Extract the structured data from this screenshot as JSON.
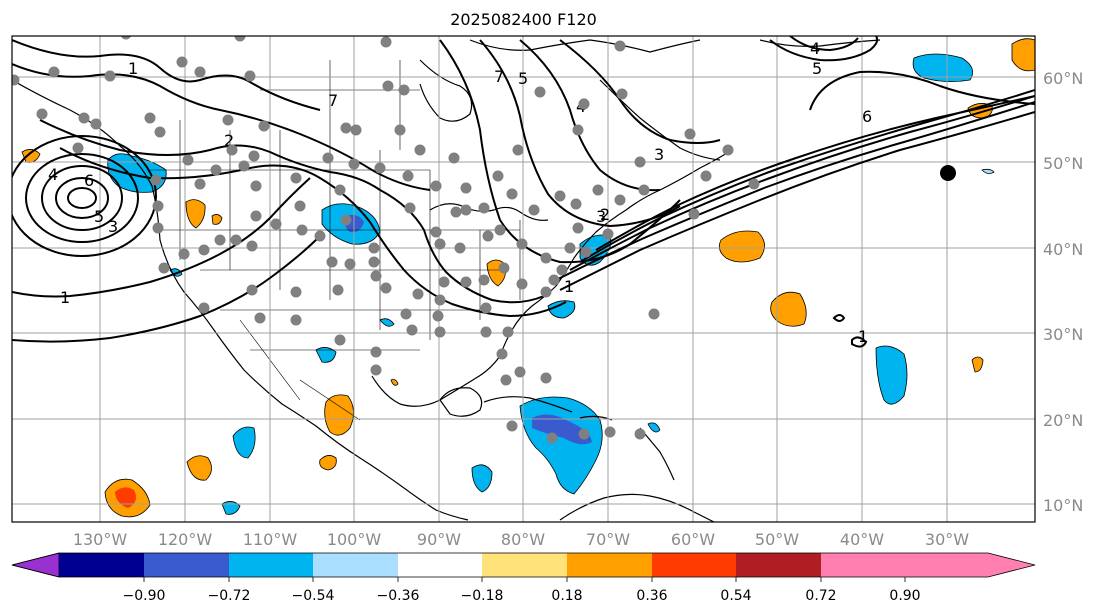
{
  "title": "2025082400 F120",
  "lon_labels": [
    "130°W",
    "120°W",
    "110°W",
    "100°W",
    "90°W",
    "80°W",
    "70°W",
    "60°W",
    "50°W",
    "40°W",
    "30°W"
  ],
  "lat_labels": [
    "60°N",
    "50°N",
    "40°N",
    "30°N",
    "20°N",
    "10°N"
  ],
  "colorbar": {
    "labels": [
      "−0.90",
      "−0.72",
      "−0.54",
      "−0.36",
      "−0.18",
      "0.18",
      "0.36",
      "0.54",
      "0.72",
      "0.90"
    ],
    "colors": [
      "#9b30d0",
      "#000090",
      "#3a5ad0",
      "#00b4f0",
      "#aadeff",
      "#ffffff",
      "#ffe37a",
      "#ffa000",
      "#ff3c00",
      "#b01e24",
      "#ff80b0"
    ]
  },
  "contour_labels": [
    "1",
    "1",
    "2",
    "3",
    "4",
    "5",
    "6",
    "7",
    "1",
    "2",
    "3",
    "4",
    "5",
    "6",
    "7",
    "3",
    "4",
    "5",
    "6",
    "1"
  ]
}
